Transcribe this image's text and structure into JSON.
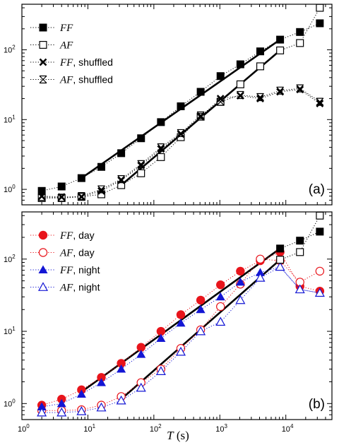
{
  "figure": {
    "xlabel_var": "T",
    "xlabel_unit": " (s)"
  },
  "colors": {
    "black": "#000000",
    "red": "#e8141b",
    "blue": "#1316d4"
  },
  "chart_data": [
    {
      "type": "scatter",
      "panel_label": "(a)",
      "xscale": "log",
      "yscale": "log",
      "xlim": [
        1,
        50000
      ],
      "ylim": [
        0.6,
        450
      ],
      "x_tick_labels": [
        "10",
        "10",
        "10",
        "10",
        "10"
      ],
      "x_tick_exponents": [
        "0",
        "1",
        "2",
        "3",
        "4"
      ],
      "y_tick_labels": [
        "10",
        "10",
        "10"
      ],
      "y_tick_exponents": [
        "0",
        "1",
        "2"
      ],
      "legend_position": "top-left",
      "series": [
        {
          "name_var": "FF",
          "name_suffix": "",
          "marker": "square-filled",
          "color": "#000000",
          "line": "dotted",
          "x": [
            2,
            4,
            8,
            16,
            32,
            64,
            128,
            256,
            512,
            1024,
            2048,
            4096,
            8192,
            16384,
            32768
          ],
          "y": [
            0.95,
            1.1,
            1.45,
            2.1,
            3.3,
            5.4,
            9.2,
            15.5,
            25,
            42,
            62,
            95,
            140,
            180,
            240
          ]
        },
        {
          "name_var": "AF",
          "name_suffix": "",
          "marker": "square-open",
          "color": "#000000",
          "line": "dotted",
          "x": [
            2,
            4,
            8,
            16,
            32,
            64,
            128,
            256,
            512,
            1024,
            2048,
            4096,
            8192,
            16384,
            32768
          ],
          "y": [
            0.75,
            0.75,
            0.78,
            0.85,
            1.15,
            1.7,
            2.9,
            5.6,
            11,
            18,
            32,
            58,
            98,
            125,
            400
          ]
        },
        {
          "name_var": "FF",
          "name_suffix": ", shuffled",
          "marker": "x",
          "color": "#000000",
          "line": "dotted",
          "x": [
            2,
            4,
            8,
            16,
            32,
            64,
            128,
            256,
            512,
            1024,
            2048,
            4096,
            8192,
            16384,
            32768
          ],
          "y": [
            0.8,
            0.78,
            0.78,
            0.95,
            1.35,
            2.2,
            3.8,
            6.2,
            11,
            20,
            22,
            20,
            25,
            27,
            17
          ]
        },
        {
          "name_var": "AF",
          "name_suffix": ", shuffled",
          "marker": "x-box",
          "color": "#000000",
          "line": "dotted",
          "x": [
            2,
            4,
            8,
            16,
            32,
            64,
            128,
            256,
            512,
            1024,
            2048,
            4096,
            8192,
            16384,
            32768
          ],
          "y": [
            0.78,
            0.76,
            0.8,
            1.0,
            1.4,
            2.3,
            4.0,
            6.4,
            11.5,
            18,
            22.5,
            21,
            26,
            28,
            18
          ]
        }
      ],
      "fit_lines": [
        {
          "x": [
            8,
            8192
          ],
          "y": [
            1.45,
            140
          ]
        },
        {
          "x": [
            32,
            8192
          ],
          "y": [
            1.15,
            98
          ]
        }
      ]
    },
    {
      "type": "scatter",
      "panel_label": "(b)",
      "xscale": "log",
      "yscale": "log",
      "xlim": [
        1,
        50000
      ],
      "ylim": [
        0.6,
        450
      ],
      "x_tick_labels": [
        "10",
        "10",
        "10",
        "10",
        "10"
      ],
      "x_tick_exponents": [
        "0",
        "1",
        "2",
        "3",
        "4"
      ],
      "y_tick_labels": [
        "10",
        "10",
        "10"
      ],
      "y_tick_exponents": [
        "0",
        "1",
        "2"
      ],
      "legend_position": "top-left",
      "series": [
        {
          "name_var": "FF",
          "name_suffix": ", day",
          "marker": "circle-filled",
          "color": "#e8141b",
          "line": "dotted",
          "x": [
            2,
            4,
            8,
            16,
            32,
            64,
            128,
            256,
            512,
            1024,
            2048,
            4096,
            8192,
            16384,
            32768
          ],
          "y": [
            0.95,
            1.15,
            1.55,
            2.3,
            3.6,
            6.0,
            10,
            17,
            27,
            44,
            68,
            95,
            125,
            42,
            36
          ]
        },
        {
          "name_var": "AF",
          "name_suffix": ", day",
          "marker": "circle-open",
          "color": "#e8141b",
          "line": "dotted",
          "x": [
            2,
            4,
            8,
            16,
            32,
            64,
            128,
            256,
            512,
            1024,
            2048,
            4096,
            8192,
            16384,
            32768
          ],
          "y": [
            0.8,
            0.8,
            0.82,
            0.95,
            1.25,
            1.95,
            3.0,
            5.8,
            10.5,
            22,
            45,
            100,
            95,
            48,
            68
          ]
        },
        {
          "name_var": "FF",
          "name_suffix": ", night",
          "marker": "triangle-filled",
          "color": "#1316d4",
          "line": "dotted",
          "x": [
            2,
            4,
            8,
            16,
            32,
            64,
            128,
            256,
            512,
            1024,
            2048,
            4096,
            8192,
            16384,
            32768
          ],
          "y": [
            0.9,
            1.0,
            1.35,
            1.95,
            3.0,
            4.8,
            8.0,
            13,
            20,
            30,
            48,
            65,
            78,
            38,
            34
          ]
        },
        {
          "name_var": "AF",
          "name_suffix": ", night",
          "marker": "triangle-open",
          "color": "#1316d4",
          "line": "dotted",
          "x": [
            2,
            4,
            8,
            16,
            32,
            64,
            128,
            256,
            512,
            1024,
            2048,
            4096,
            8192,
            16384,
            32768
          ],
          "y": [
            0.75,
            0.75,
            0.78,
            0.88,
            1.1,
            1.65,
            2.8,
            5.2,
            10,
            13.5,
            27,
            55,
            78,
            38,
            34
          ]
        },
        {
          "name_var": "",
          "name_suffix": "",
          "marker": "square-filled",
          "color": "#000000",
          "line": "dotted",
          "x": [
            8192,
            16384,
            32768
          ],
          "y": [
            140,
            180,
            240
          ]
        },
        {
          "name_var": "",
          "name_suffix": "",
          "marker": "square-open",
          "color": "#000000",
          "line": "dotted",
          "x": [
            8192,
            16384,
            32768
          ],
          "y": [
            98,
            125,
            400
          ]
        }
      ],
      "fit_lines": [
        {
          "x": [
            8,
            8192
          ],
          "y": [
            1.45,
            140
          ]
        },
        {
          "x": [
            32,
            8192
          ],
          "y": [
            1.15,
            98
          ]
        }
      ]
    }
  ]
}
